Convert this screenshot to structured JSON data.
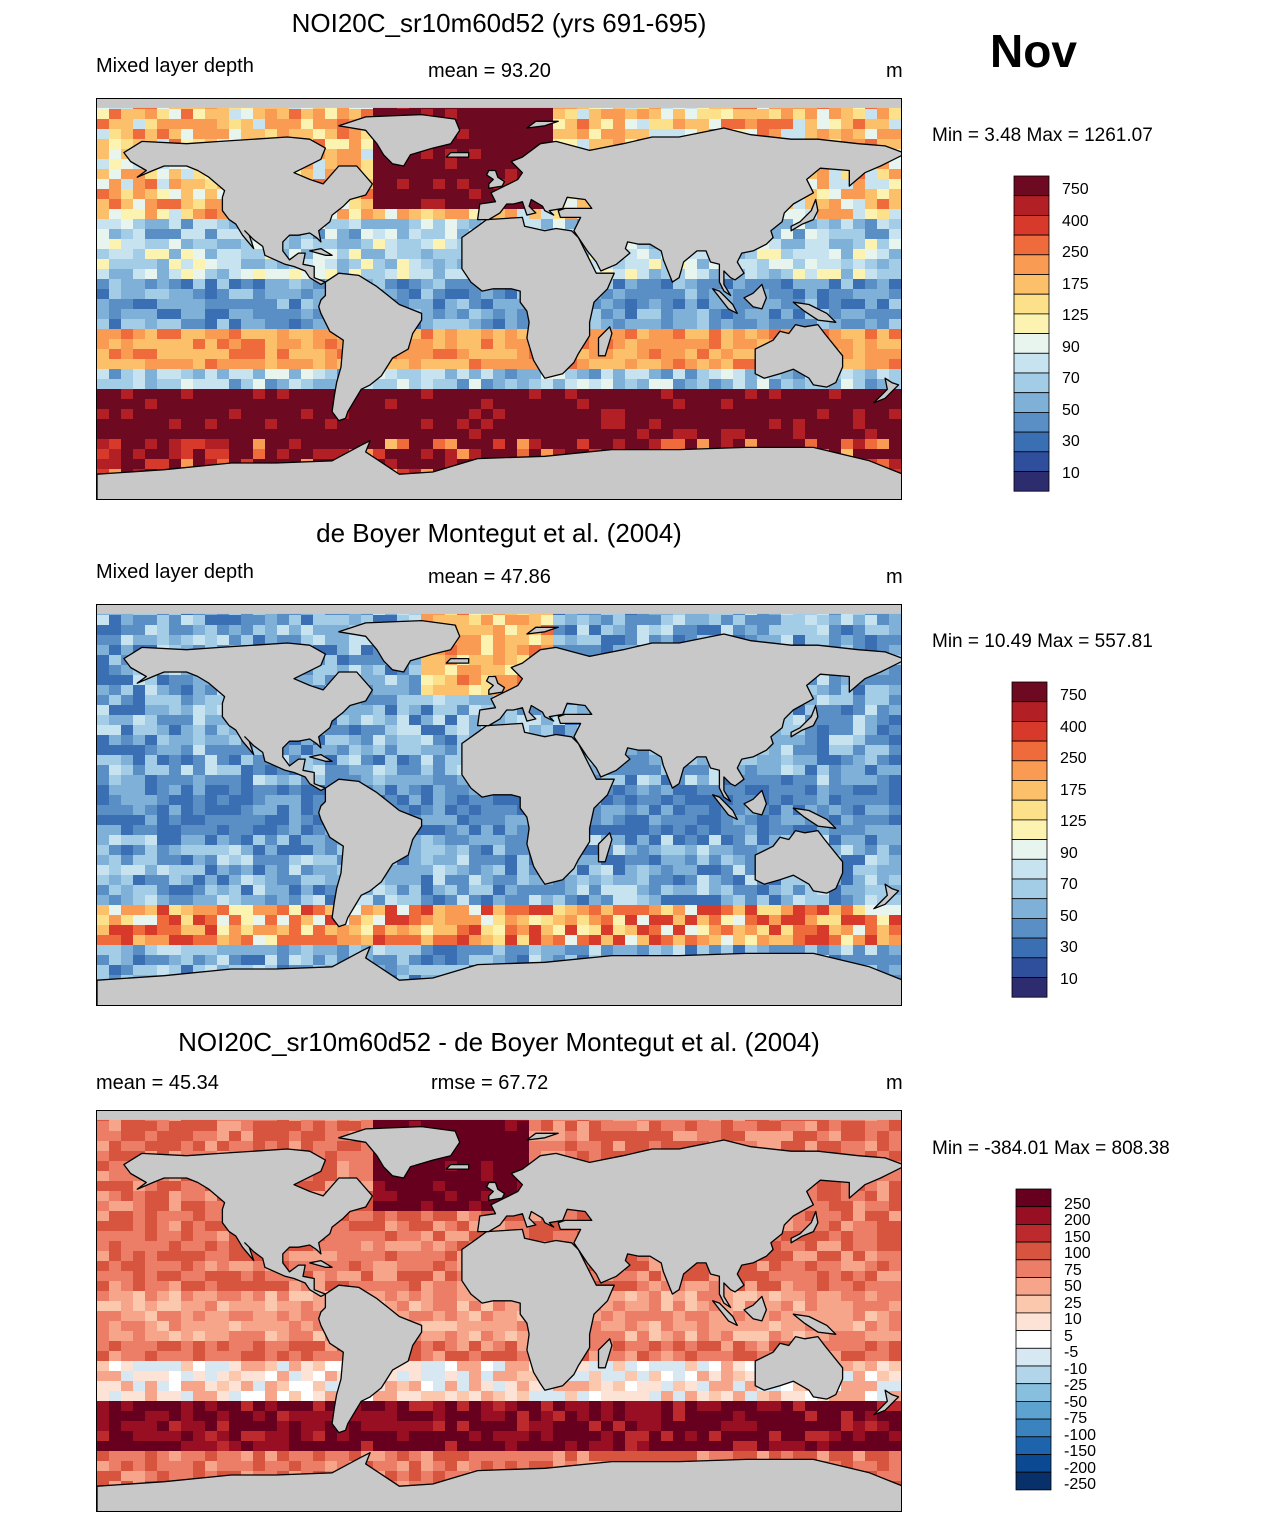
{
  "month": "Nov",
  "colors": {
    "land": "#c8c8c8",
    "coast": "#000000",
    "seq_palette": [
      "#2c2c6e",
      "#2f4f9c",
      "#3b6fb4",
      "#5a8fc6",
      "#7eb0d8",
      "#a3cce6",
      "#c7e3ef",
      "#e8f4ee",
      "#fdf3b0",
      "#fde08a",
      "#fcc06a",
      "#f99b52",
      "#f06b3c",
      "#d7392b",
      "#b21f24",
      "#6d0a22"
    ],
    "div_palette": [
      "#08306b",
      "#0b4a92",
      "#1d64ac",
      "#3a83bf",
      "#5ea2cf",
      "#88bfdf",
      "#b3d5ea",
      "#d8e8f3",
      "#ffffff",
      "#fde3d6",
      "#fbc7ad",
      "#f6a48a",
      "#ec7d66",
      "#d7543f",
      "#bd2a2e",
      "#980f24",
      "#67001f"
    ]
  },
  "panels": [
    {
      "id": "model",
      "title": "NOI20C_sr10m60d52 (yrs 691-695)",
      "left": "Mixed layer depth",
      "center": "mean =  93.20",
      "units": "m",
      "minmax": "Min =   3.48 Max = 1261.07",
      "labels": [
        "750",
        "400",
        "250",
        "175",
        "125",
        "90",
        "70",
        "50",
        "30",
        "10"
      ],
      "palette": "seq",
      "field": {
        "type": "model",
        "level_means": [
          50,
          40,
          60,
          30,
          45,
          75,
          130,
          230,
          160
        ]
      }
    },
    {
      "id": "obs",
      "title": "de Boyer Montegut et al. (2004)",
      "left": "Mixed layer depth",
      "center": "mean =  47.86",
      "units": "m",
      "minmax": "Min =  10.49 Max = 557.81",
      "labels": [
        "750",
        "400",
        "250",
        "175",
        "125",
        "90",
        "70",
        "50",
        "30",
        "10"
      ],
      "palette": "seq",
      "field": {
        "type": "obs",
        "level_means": [
          40,
          35,
          45,
          25,
          35,
          55,
          70,
          80,
          100
        ]
      }
    },
    {
      "id": "diff",
      "title": "NOI20C_sr10m60d52 - de Boyer Montegut et al. (2004)",
      "left": "mean =  45.34",
      "center": "rmse =  67.72",
      "units": "m",
      "minmax": "Min = -384.01 Max = 808.38",
      "labels": [
        "250",
        "200",
        "150",
        "100",
        "75",
        "50",
        "25",
        "10",
        "5",
        "-5",
        "-10",
        "-25",
        "-50",
        "-75",
        "-100",
        "-150",
        "-200",
        "-250"
      ],
      "palette": "div",
      "field": {
        "type": "diff",
        "level_means": [
          10,
          5,
          15,
          5,
          10,
          20,
          60,
          150,
          60
        ]
      }
    }
  ]
}
